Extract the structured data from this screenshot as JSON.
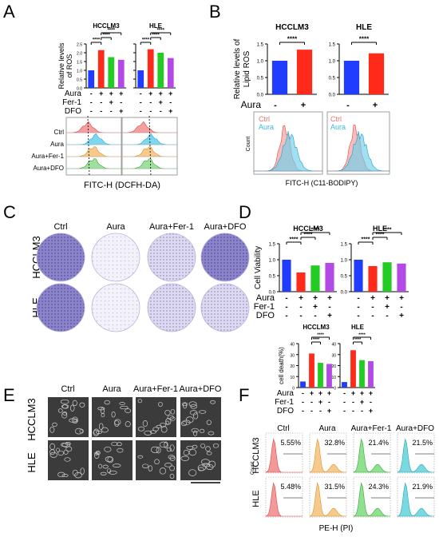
{
  "panels": {
    "A": {
      "letter": "A",
      "bar_ylabel": [
        "Relative levels",
        "of ROS"
      ],
      "bar_yticks": [
        "0.0",
        "0.5",
        "1.0",
        "1.5",
        "2.0",
        "2.5"
      ],
      "treat_rows": [
        {
          "label": "Aura",
          "marks": [
            "-",
            "+",
            "+",
            "+"
          ]
        },
        {
          "label": "Fer-1",
          "marks": [
            "-",
            "-",
            "+",
            "-"
          ]
        },
        {
          "label": "DFO",
          "marks": [
            "-",
            "-",
            "-",
            "+"
          ]
        }
      ],
      "sig": "****",
      "flow_rows": [
        "Ctrl",
        "Aura",
        "Aura+Fer-1",
        "Aura+DFO"
      ],
      "flow_xlabel": "FITC-H (DCFH-DA)"
    },
    "B": {
      "letter": "B",
      "bar_ylabel": [
        "Relative levels of",
        "Lipid ROS"
      ],
      "bar_yticks": [
        "0.0",
        "0.5",
        "1.0",
        "1.5"
      ],
      "treat_label": "Aura",
      "treat_marks": [
        "-",
        "+"
      ],
      "sig": "****",
      "legend": [
        "Ctrl",
        "Aura"
      ],
      "flow_ylabel": "Count",
      "flow_xlabel": "FITC-H (C11-BODIPY)"
    },
    "C": {
      "letter": "C",
      "cols": [
        "Ctrl",
        "Aura",
        "Aura+Fer-1",
        "Aura+DFO"
      ],
      "rows": [
        "HCCLM3",
        "HLE"
      ]
    },
    "D": {
      "letter": "D",
      "bar_ylabel": "Cell Viability",
      "bar_yticks": [
        "0.0",
        "0.5",
        "1.0",
        "1.5"
      ],
      "treat_rows": [
        {
          "label": "Aura",
          "marks": [
            "-",
            "+",
            "+",
            "+"
          ]
        },
        {
          "label": "Fer-1",
          "marks": [
            "-",
            "-",
            "+",
            "-"
          ]
        },
        {
          "label": "DFO",
          "marks": [
            "-",
            "-",
            "-",
            "+"
          ]
        }
      ],
      "sig": "****"
    },
    "E": {
      "letter": "E",
      "cols": [
        "Ctrl",
        "Aura",
        "Aura+Fer-1",
        "Aura+DFO"
      ],
      "rows": [
        "HCCLM3",
        "HLE"
      ]
    },
    "F": {
      "letter": "F",
      "bar_ylabel": "cell death(%)",
      "bar_yticks": [
        "0",
        "10",
        "20",
        "30",
        "40"
      ],
      "treat_rows": [
        {
          "label": "Aura",
          "marks": [
            "-",
            "+",
            "+",
            "+"
          ]
        },
        {
          "label": "Fer-1",
          "marks": [
            "-",
            "-",
            "+",
            "-"
          ]
        },
        {
          "label": "DFO",
          "marks": [
            "-",
            "-",
            "-",
            "+"
          ]
        }
      ],
      "sig": "****",
      "flow_cols": [
        "Ctrl",
        "Aura",
        "Aura+Fer-1",
        "Aura+DFO"
      ],
      "flow_rows": [
        "HCCLM3",
        "HLE"
      ],
      "flow_ylabel": "Count",
      "flow_xlabel": "PE-H (PI)",
      "percents": [
        [
          "5.55%",
          "32.8%",
          "21.4%",
          "21.5%"
        ],
        [
          "5.48%",
          "31.5%",
          "24.3%",
          "21.9%"
        ]
      ]
    }
  },
  "chart_data": [
    {
      "type": "bar",
      "panel": "A",
      "categories": [
        "-/-/-",
        "+/-/-",
        "+/+/-",
        "+/-/+"
      ],
      "series": [
        {
          "name": "HCCLM3",
          "values": [
            1.0,
            2.15,
            1.75,
            1.6
          ]
        },
        {
          "name": "HLE",
          "values": [
            1.0,
            2.2,
            2.0,
            1.7
          ]
        }
      ],
      "ylim": [
        0,
        2.5
      ],
      "colors": [
        "#1f3cff",
        "#ff2a1a",
        "#22cc22",
        "#b44ae6"
      ]
    },
    {
      "type": "bar",
      "panel": "B",
      "categories": [
        "-",
        "+"
      ],
      "series": [
        {
          "name": "HCCLM3",
          "values": [
            1.0,
            1.33
          ]
        },
        {
          "name": "HLE",
          "values": [
            1.0,
            1.22
          ]
        }
      ],
      "ylim": [
        0,
        1.5
      ],
      "colors": [
        "#1f3cff",
        "#ff2a1a"
      ]
    },
    {
      "type": "bar",
      "panel": "D",
      "categories": [
        "-/-/-",
        "+/-/-",
        "+/+/-",
        "+/-/+"
      ],
      "series": [
        {
          "name": "HCCLM3",
          "values": [
            1.0,
            0.6,
            0.82,
            0.9
          ]
        },
        {
          "name": "HLE",
          "values": [
            1.0,
            0.8,
            0.92,
            0.88
          ]
        }
      ],
      "ylim": [
        0,
        1.5
      ],
      "colors": [
        "#1f3cff",
        "#ff2a1a",
        "#22cc22",
        "#b44ae6"
      ]
    },
    {
      "type": "bar",
      "panel": "F",
      "categories": [
        "-/-/-",
        "+/-/-",
        "+/+/-",
        "+/-/+"
      ],
      "series": [
        {
          "name": "HCCLM3",
          "values": [
            5.5,
            31.0,
            22.5,
            21.5
          ]
        },
        {
          "name": "HLE",
          "values": [
            5.0,
            34.0,
            25.0,
            24.0
          ]
        }
      ],
      "ylim": [
        0,
        40
      ],
      "colors": [
        "#1f3cff",
        "#ff2a1a",
        "#22cc22",
        "#b44ae6"
      ]
    }
  ]
}
